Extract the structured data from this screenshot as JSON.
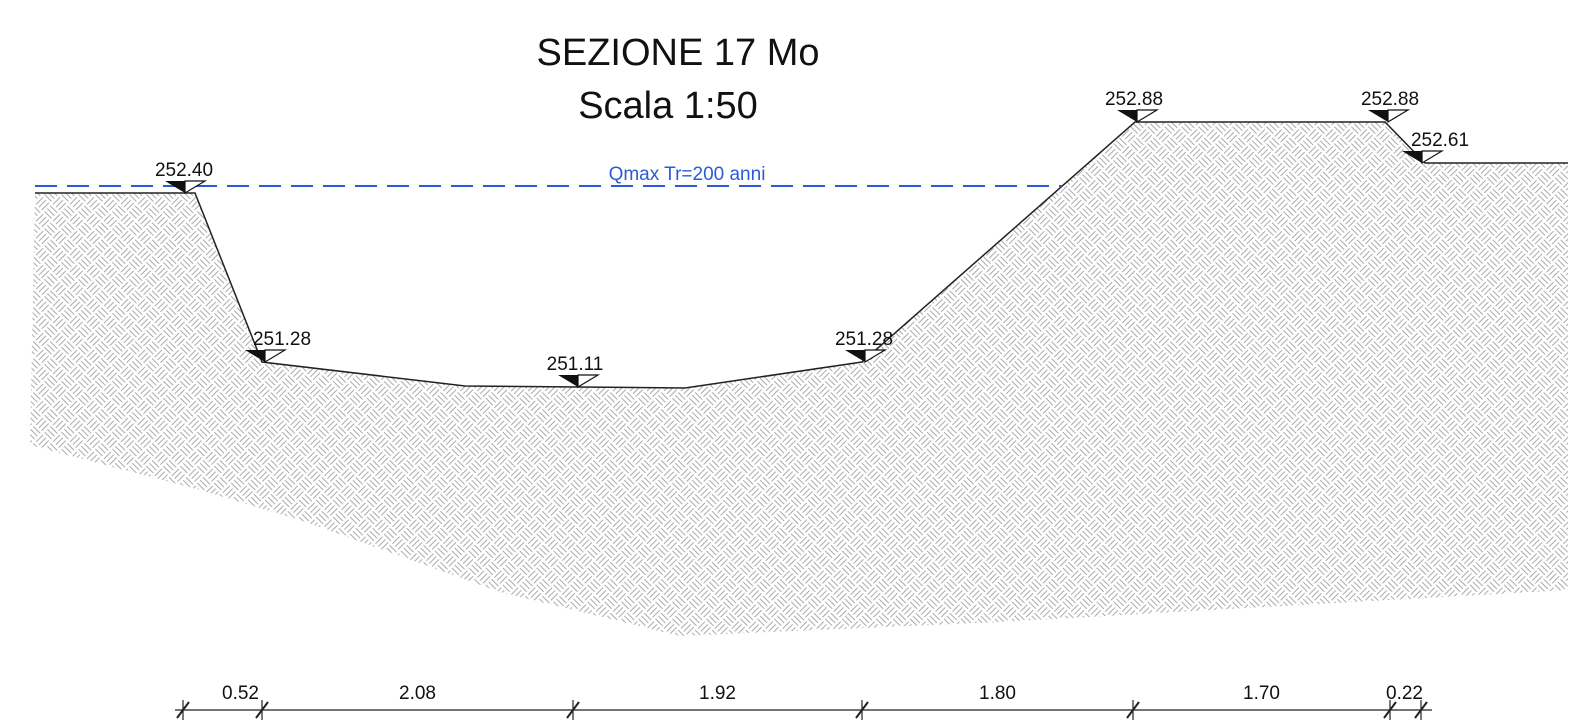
{
  "title": "SEZIONE 17 Mo",
  "subtitle": "Scala 1:50",
  "water_level": {
    "label": "Qmax Tr=200 anni"
  },
  "elevations": [
    "252.40",
    "251.28",
    "251.11",
    "251.28",
    "252.88",
    "252.88",
    "252.61"
  ],
  "dimensions": [
    "0.52",
    "2.08",
    "1.92",
    "1.80",
    "1.70",
    "0.22"
  ]
}
